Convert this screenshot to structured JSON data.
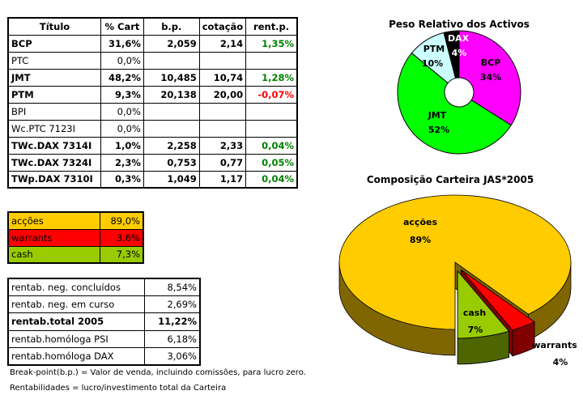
{
  "positions_table": {
    "headers": [
      "Título",
      "% Cart",
      "b.p.",
      "cotação",
      "rent.p."
    ],
    "rows": [
      {
        "titulo": "BCP",
        "cart": "31,6%",
        "bp": "2,059",
        "cotacao": "2,14",
        "rent": "1,35%",
        "bold": true,
        "sign": "pos"
      },
      {
        "titulo": "PTC",
        "cart": "0,0%",
        "bp": "",
        "cotacao": "",
        "rent": "",
        "bold": false,
        "sign": ""
      },
      {
        "titulo": "JMT",
        "cart": "48,2%",
        "bp": "10,485",
        "cotacao": "10,74",
        "rent": "1,28%",
        "bold": true,
        "sign": "pos"
      },
      {
        "titulo": "PTM",
        "cart": "9,3%",
        "bp": "20,138",
        "cotacao": "20,00",
        "rent": "-0,07%",
        "bold": true,
        "sign": "neg"
      },
      {
        "titulo": "BPI",
        "cart": "0,0%",
        "bp": "",
        "cotacao": "",
        "rent": "",
        "bold": false,
        "sign": ""
      },
      {
        "titulo": "Wc.PTC 7123I",
        "cart": "0,0%",
        "bp": "",
        "cotacao": "",
        "rent": "",
        "bold": false,
        "sign": ""
      },
      {
        "titulo": "TWc.DAX 7314I",
        "cart": "1,0%",
        "bp": "2,258",
        "cotacao": "2,33",
        "rent": "0,04%",
        "bold": true,
        "sign": "pos"
      },
      {
        "titulo": "TWc.DAX 7324I",
        "cart": "2,3%",
        "bp": "0,753",
        "cotacao": "0,77",
        "rent": "0,05%",
        "bold": true,
        "sign": "pos"
      },
      {
        "titulo": "TWp.DAX 7310I",
        "cart": "0,3%",
        "bp": "1,049",
        "cotacao": "1,17",
        "rent": "0,04%",
        "bold": true,
        "sign": "pos"
      }
    ]
  },
  "composition_table": [
    {
      "label": "acções",
      "value": "89,0%",
      "color": "#ffcc00"
    },
    {
      "label": "warrants",
      "value": "3,6%",
      "color": "#ff0000"
    },
    {
      "label": "cash",
      "value": "7,3%",
      "color": "#99cc00"
    }
  ],
  "returns_table": [
    {
      "label": "rentab. neg. concluídos",
      "value": "8,54%",
      "bold": false
    },
    {
      "label": "rentab. neg. em curso",
      "value": "2,69%",
      "bold": false
    },
    {
      "label": "rentab.total 2005",
      "value": "11,22%",
      "bold": true
    },
    {
      "label": "rentab.homóloga PSI",
      "value": "6,18%",
      "bold": false
    },
    {
      "label": "rentab.homóloga DAX",
      "value": "3,06%",
      "bold": false
    }
  ],
  "notes": [
    "Break-point(b.p.) = Valor de venda, incluindo comissões, para lucro zero.",
    "Rentabilidades = lucro/investimento total da Carteira"
  ],
  "chart_data": [
    {
      "type": "pie",
      "variant": "doughnut",
      "title": "Peso Relativo dos Activos",
      "categories": [
        "BCP",
        "JMT",
        "PTM",
        "DAX"
      ],
      "values": [
        34,
        52,
        10,
        4
      ],
      "labels": [
        "34%",
        "52%",
        "10%",
        "4%"
      ],
      "colors": [
        "#ff00ff",
        "#00ff00",
        "#ccffff",
        "#000000"
      ]
    },
    {
      "type": "pie",
      "variant": "3d-exploded",
      "title": "Composição Carteira JAS*2005",
      "categories": [
        "acções",
        "warrants",
        "cash"
      ],
      "values": [
        89.0,
        3.6,
        7.3
      ],
      "labels": [
        "89%",
        "4%",
        "7%"
      ],
      "colors": [
        "#ffcc00",
        "#ff0000",
        "#99cc00"
      ]
    }
  ]
}
